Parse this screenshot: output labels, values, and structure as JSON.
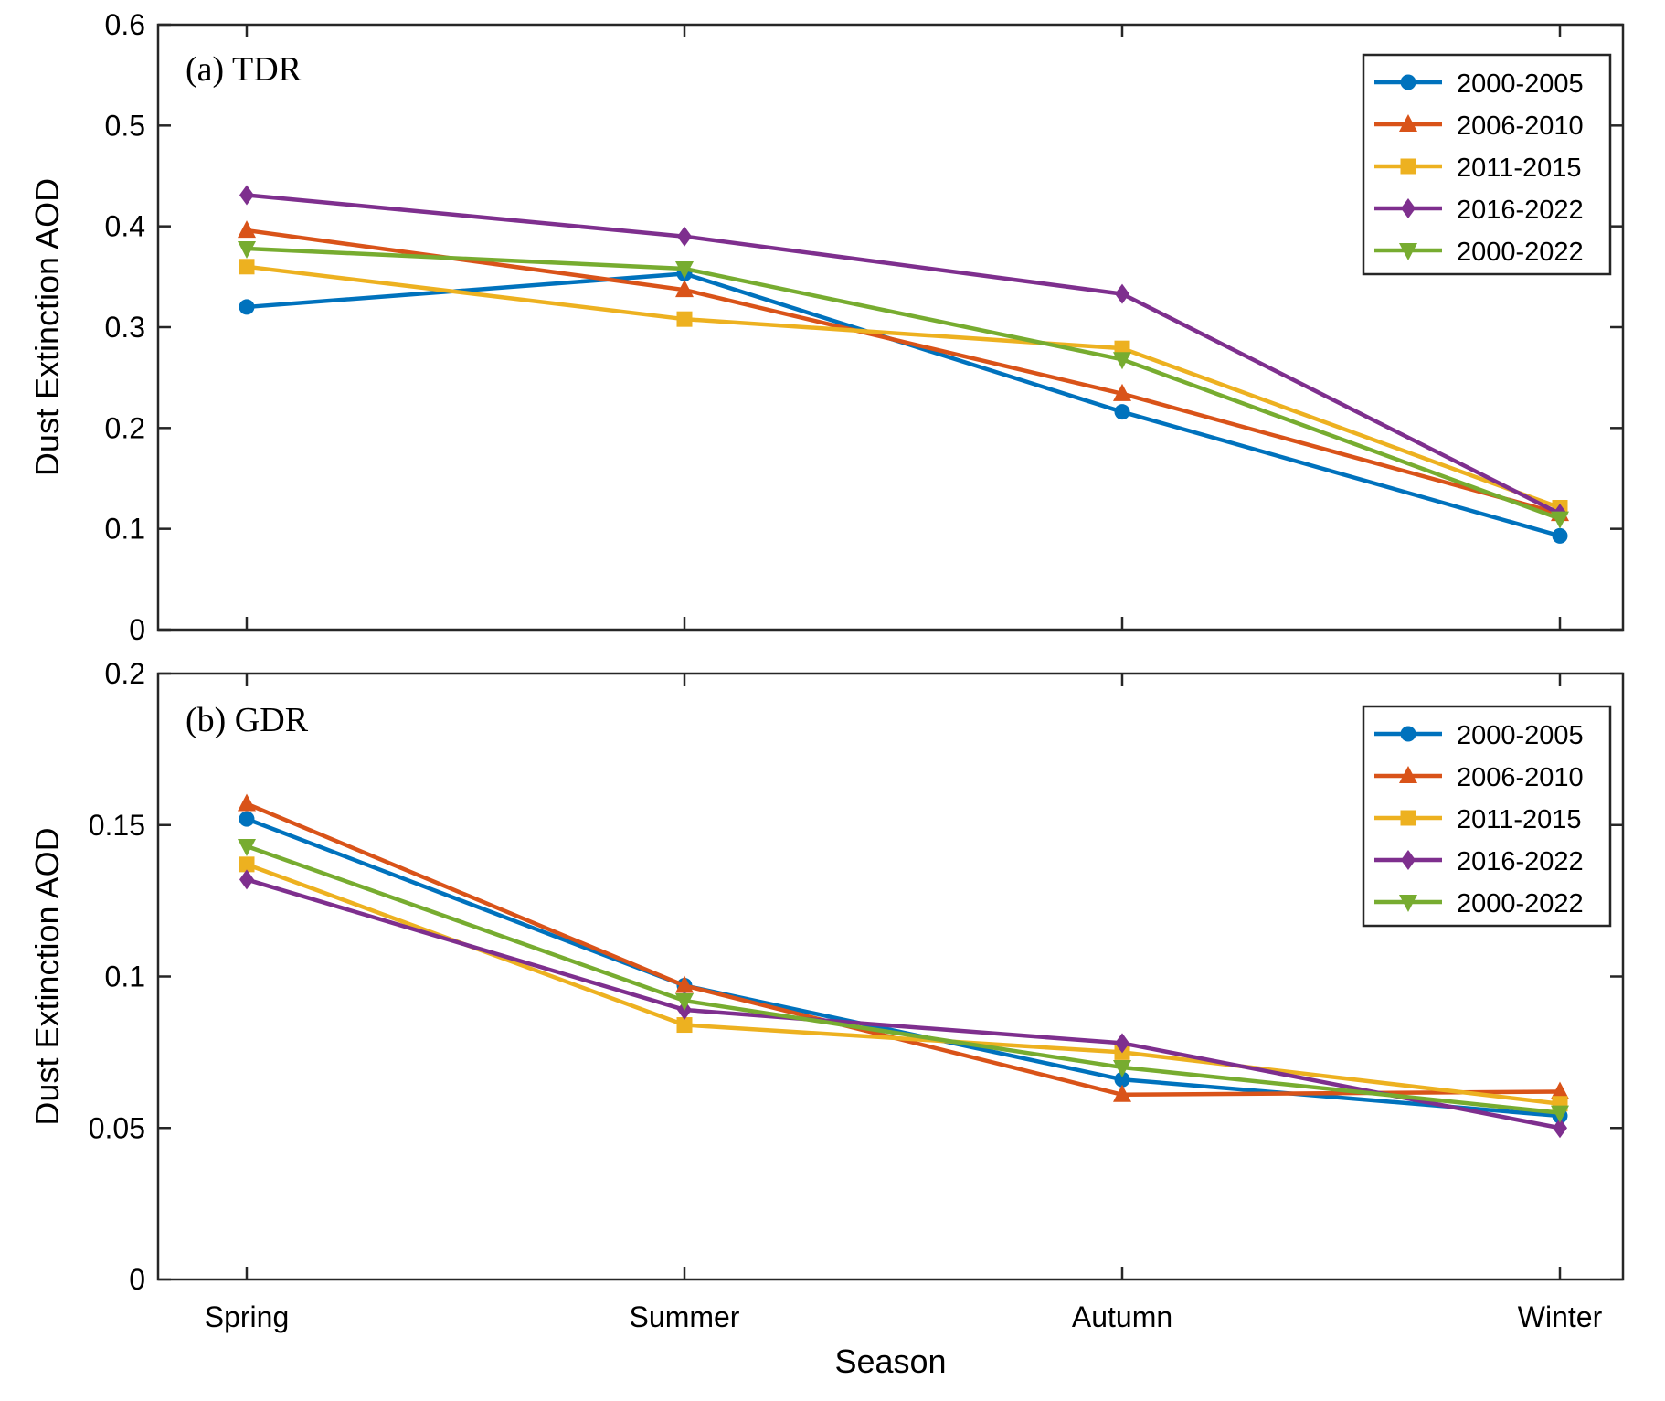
{
  "chart_data": [
    {
      "type": "line",
      "title": "(a) TDR",
      "xlabel": "",
      "ylabel": "Dust Extinction AOD",
      "categories": [
        "Spring",
        "Summer",
        "Autumn",
        "Winter"
      ],
      "ylim": [
        0,
        0.6
      ],
      "yticks": [
        "0",
        "0.1",
        "0.2",
        "0.3",
        "0.4",
        "0.5",
        "0.6"
      ],
      "grid": false,
      "legend_position": "top-right",
      "series": [
        {
          "name": "2000-2005",
          "color": "#0072BD",
          "marker": "circle",
          "values": [
            0.32,
            0.353,
            0.216,
            0.093
          ]
        },
        {
          "name": "2006-2010",
          "color": "#D95319",
          "marker": "triangle-up",
          "values": [
            0.396,
            0.337,
            0.234,
            0.115
          ]
        },
        {
          "name": "2011-2015",
          "color": "#EDB120",
          "marker": "square",
          "values": [
            0.36,
            0.308,
            0.279,
            0.121
          ]
        },
        {
          "name": "2016-2022",
          "color": "#7E2F8E",
          "marker": "diamond",
          "values": [
            0.431,
            0.39,
            0.333,
            0.115
          ]
        },
        {
          "name": "2000-2022",
          "color": "#77AC30",
          "marker": "triangle-down",
          "values": [
            0.378,
            0.358,
            0.268,
            0.11
          ]
        }
      ]
    },
    {
      "type": "line",
      "title": "(b) GDR",
      "xlabel": "Season",
      "ylabel": "Dust Extinction AOD",
      "categories": [
        "Spring",
        "Summer",
        "Autumn",
        "Winter"
      ],
      "ylim": [
        0,
        0.2
      ],
      "yticks": [
        "0",
        "0.05",
        "0.1",
        "0.15",
        "0.2"
      ],
      "grid": false,
      "legend_position": "top-right",
      "series": [
        {
          "name": "2000-2005",
          "color": "#0072BD",
          "marker": "circle",
          "values": [
            0.152,
            0.097,
            0.066,
            0.054
          ]
        },
        {
          "name": "2006-2010",
          "color": "#D95319",
          "marker": "triangle-up",
          "values": [
            0.157,
            0.097,
            0.061,
            0.062
          ]
        },
        {
          "name": "2011-2015",
          "color": "#EDB120",
          "marker": "square",
          "values": [
            0.137,
            0.084,
            0.075,
            0.058
          ]
        },
        {
          "name": "2016-2022",
          "color": "#7E2F8E",
          "marker": "diamond",
          "values": [
            0.132,
            0.089,
            0.078,
            0.05
          ]
        },
        {
          "name": "2000-2022",
          "color": "#77AC30",
          "marker": "triangle-down",
          "values": [
            0.143,
            0.092,
            0.07,
            0.055
          ]
        }
      ]
    }
  ]
}
